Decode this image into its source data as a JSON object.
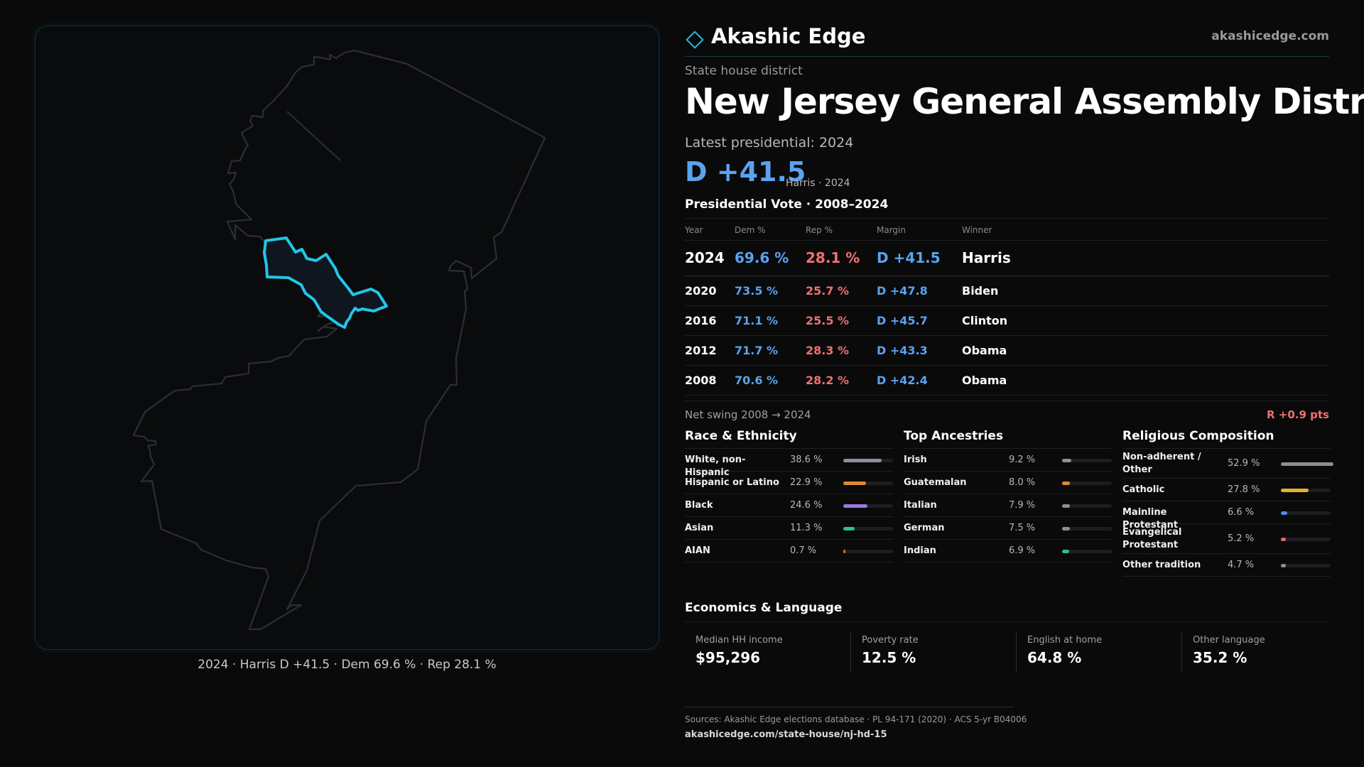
{
  "brand": {
    "name": "Akashic Edge",
    "url": "akashicedge.com"
  },
  "district": {
    "type_label": "State house district",
    "title": "New Jersey General Assembly District"
  },
  "latest": {
    "label": "Latest presidential: 2024",
    "margin": "D +41.5",
    "sub": "Harris · 2024"
  },
  "map": {
    "caption": "2024 · Harris D +41.5 · Dem 69.6 % · Rep 28.1 %",
    "highlight_color": "#22c6e8"
  },
  "presidential": {
    "heading": "Presidential Vote · 2008–2024",
    "columns": [
      "Year",
      "Dem %",
      "Rep %",
      "Margin",
      "Winner"
    ],
    "rows": [
      {
        "year": "2024",
        "dem": "69.6 %",
        "rep": "28.1 %",
        "margin": "D +41.5",
        "winner": "Harris"
      },
      {
        "year": "2020",
        "dem": "73.5 %",
        "rep": "25.7 %",
        "margin": "D +47.8",
        "winner": "Biden"
      },
      {
        "year": "2016",
        "dem": "71.1 %",
        "rep": "25.5 %",
        "margin": "D +45.7",
        "winner": "Clinton"
      },
      {
        "year": "2012",
        "dem": "71.7 %",
        "rep": "28.3 %",
        "margin": "D +43.3",
        "winner": "Obama"
      },
      {
        "year": "2008",
        "dem": "70.6 %",
        "rep": "28.2 %",
        "margin": "D +42.4",
        "winner": "Obama"
      }
    ],
    "swing_label": "Net swing 2008 → 2024",
    "swing_value": "R +0.9 pts"
  },
  "race": {
    "title": "Race & Ethnicity",
    "items": [
      {
        "label": "White, non-Hispanic",
        "value": "38.6 %",
        "share": 0.386,
        "color": "#8a8f99"
      },
      {
        "label": "Hispanic or Latino",
        "value": "22.9 %",
        "share": 0.229,
        "color": "#e08a2e"
      },
      {
        "label": "Black",
        "value": "24.6 %",
        "share": 0.246,
        "color": "#9a7ae0"
      },
      {
        "label": "Asian",
        "value": "11.3 %",
        "share": 0.113,
        "color": "#2ec08a"
      },
      {
        "label": "AIAN",
        "value": "0.7 %",
        "share": 0.007,
        "color": "#e06a2e"
      }
    ]
  },
  "ancestry": {
    "title": "Top Ancestries",
    "items": [
      {
        "label": "Irish",
        "value": "9.2 %",
        "share": 0.092,
        "color": "#8a8f99"
      },
      {
        "label": "Guatemalan",
        "value": "8.0 %",
        "share": 0.08,
        "color": "#e08a2e"
      },
      {
        "label": "Italian",
        "value": "7.9 %",
        "share": 0.079,
        "color": "#8a8f99"
      },
      {
        "label": "German",
        "value": "7.5 %",
        "share": 0.075,
        "color": "#8a8f99"
      },
      {
        "label": "Indian",
        "value": "6.9 %",
        "share": 0.069,
        "color": "#2ec08a"
      }
    ]
  },
  "religion": {
    "title": "Religious Composition",
    "items": [
      {
        "label": "Non-adherent / Other",
        "value": "52.9 %",
        "share": 0.529,
        "color": "#8a8f99"
      },
      {
        "label": "Catholic",
        "value": "27.8 %",
        "share": 0.278,
        "color": "#e8b030"
      },
      {
        "label": "Mainline Protestant",
        "value": "6.6 %",
        "share": 0.066,
        "color": "#4a90e0"
      },
      {
        "label": "Evangelical Protestant",
        "value": "5.2 %",
        "share": 0.052,
        "color": "#e06a6a"
      },
      {
        "label": "Other tradition",
        "value": "4.7 %",
        "share": 0.047,
        "color": "#8a8f99"
      }
    ]
  },
  "economics": {
    "title": "Economics & Language",
    "cards": [
      {
        "label": "Median HH income",
        "value": "$95,296"
      },
      {
        "label": "Poverty rate",
        "value": "12.5 %"
      },
      {
        "label": "English at home",
        "value": "64.8 %"
      },
      {
        "label": "Other language",
        "value": "35.2 %"
      }
    ]
  },
  "sources": {
    "text": "Sources: Akashic Edge elections database · PL 94-171 (2020) · ACS 5-yr B04006",
    "url": "akashicedge.com/state-house/nj-hd-15"
  }
}
